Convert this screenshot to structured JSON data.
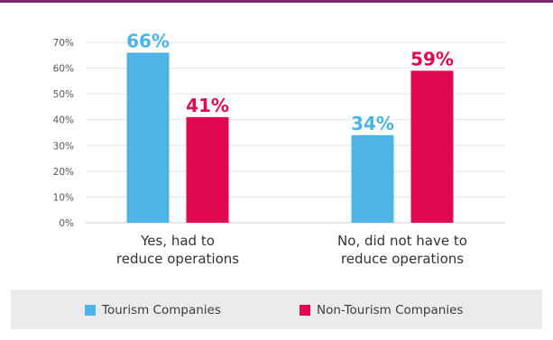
{
  "chart_data": {
    "type": "bar",
    "categories": [
      "Yes, had to\nreduce operations",
      "No, did not have to\nreduce operations"
    ],
    "series": [
      {
        "name": "Tourism Companies",
        "values": [
          66,
          34
        ],
        "labels": [
          "66%",
          "34%"
        ],
        "color": "#4eb3e5"
      },
      {
        "name": "Non-Tourism Companies",
        "values": [
          41,
          59
        ],
        "labels": [
          "41%",
          "59%"
        ],
        "color": "#e0094f"
      }
    ],
    "yticks": [
      "0%",
      "10%",
      "20%",
      "30%",
      "40%",
      "50%",
      "60%",
      "70%"
    ],
    "ylim": [
      0,
      70
    ],
    "grid": true,
    "legend_position": "bottom"
  },
  "colors": {
    "accent_strip": "#7c2b6e",
    "axis_text": "#555555",
    "category_text": "#333333",
    "grid": "#e6e6e6",
    "legend_background": "#ebebeb"
  }
}
